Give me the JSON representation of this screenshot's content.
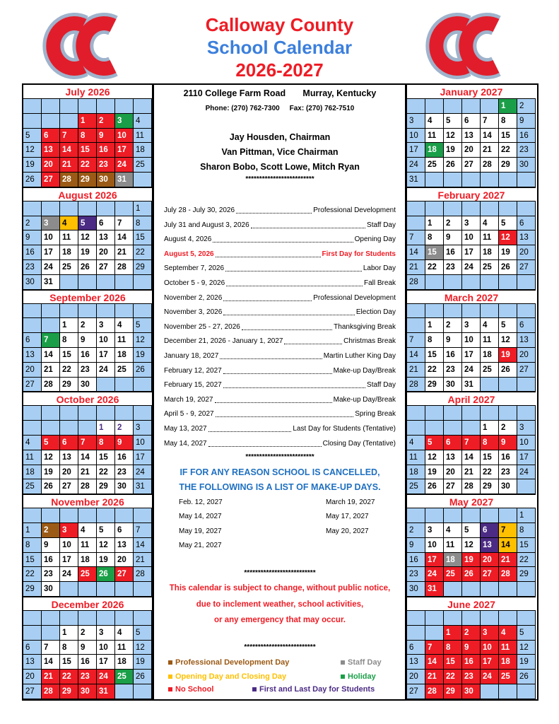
{
  "header": {
    "title_line1": "Calloway County",
    "title_line2": "School Calendar",
    "title_line3": "2026-2027"
  },
  "months_left": [
    {
      "name": "July 2026",
      "weeks": [
        [
          null,
          null,
          null,
          null,
          null,
          null,
          null
        ],
        [
          null,
          null,
          null,
          {
            "day": 1,
            "color": "#ee1c25"
          },
          {
            "day": 2,
            "color": "#ee1c25"
          },
          {
            "day": 3,
            "color": "#1a9f48"
          },
          4
        ],
        [
          5,
          {
            "day": 6,
            "color": "#ee1c25"
          },
          {
            "day": 7,
            "color": "#ee1c25"
          },
          {
            "day": 8,
            "color": "#ee1c25"
          },
          {
            "day": 9,
            "color": "#ee1c25"
          },
          {
            "day": 10,
            "color": "#ee1c25"
          },
          11
        ],
        [
          12,
          {
            "day": 13,
            "color": "#ee1c25"
          },
          {
            "day": 14,
            "color": "#ee1c25"
          },
          {
            "day": 15,
            "color": "#ee1c25"
          },
          {
            "day": 16,
            "color": "#ee1c25"
          },
          {
            "day": 17,
            "color": "#ee1c25"
          },
          18
        ],
        [
          19,
          {
            "day": 20,
            "color": "#ee1c25"
          },
          {
            "day": 21,
            "color": "#ee1c25"
          },
          {
            "day": 22,
            "color": "#ee1c25"
          },
          {
            "day": 23,
            "color": "#ee1c25"
          },
          {
            "day": 24,
            "color": "#ee1c25"
          },
          25
        ],
        [
          26,
          {
            "day": 27,
            "color": "#ee1c25"
          },
          {
            "day": 28,
            "color": "#9b5a15"
          },
          {
            "day": 29,
            "color": "#9b5a15"
          },
          {
            "day": 30,
            "color": "#9b5a15"
          },
          {
            "day": 31,
            "color": "#8c8c8c"
          },
          null
        ]
      ]
    },
    {
      "name": "August 2026",
      "weeks": [
        [
          null,
          null,
          null,
          null,
          null,
          null,
          1
        ],
        [
          2,
          {
            "day": 3,
            "color": "#8c8c8c"
          },
          {
            "day": 4,
            "color": "#ffc000"
          },
          {
            "day": 5,
            "color": "#4b2b83"
          },
          6,
          7,
          8
        ],
        [
          9,
          10,
          11,
          12,
          13,
          14,
          15
        ],
        [
          16,
          17,
          18,
          19,
          20,
          21,
          22
        ],
        [
          23,
          24,
          25,
          26,
          27,
          28,
          29
        ],
        [
          30,
          31,
          null,
          null,
          null,
          null,
          null
        ]
      ]
    },
    {
      "name": "September 2026",
      "weeks": [
        [
          null,
          null,
          null,
          null,
          null,
          null,
          null
        ],
        [
          null,
          null,
          1,
          2,
          3,
          4,
          5
        ],
        [
          6,
          {
            "day": 7,
            "color": "#1a9f48"
          },
          8,
          9,
          10,
          11,
          12
        ],
        [
          13,
          14,
          15,
          16,
          17,
          18,
          19
        ],
        [
          20,
          21,
          22,
          23,
          24,
          25,
          26
        ],
        [
          27,
          28,
          29,
          30,
          null,
          null,
          null
        ]
      ]
    },
    {
      "name": "October 2026",
      "weeks": [
        [
          null,
          null,
          null,
          null,
          null,
          null,
          null
        ],
        [
          null,
          null,
          null,
          null,
          {
            "day": 1,
            "text_color": "#4b2b83"
          },
          {
            "day": 2,
            "text_color": "#4b2b83"
          },
          3
        ],
        [
          4,
          {
            "day": 5,
            "color": "#ee1c25"
          },
          {
            "day": 6,
            "color": "#ee1c25"
          },
          {
            "day": 7,
            "color": "#ee1c25"
          },
          {
            "day": 8,
            "color": "#ee1c25"
          },
          {
            "day": 9,
            "color": "#ee1c25"
          },
          10
        ],
        [
          11,
          12,
          13,
          14,
          15,
          16,
          17
        ],
        [
          18,
          19,
          20,
          21,
          22,
          23,
          24
        ],
        [
          25,
          26,
          27,
          28,
          29,
          30,
          31
        ]
      ]
    },
    {
      "name": "November 2026",
      "weeks": [
        [
          null,
          null,
          null,
          null,
          null,
          null,
          null
        ],
        [
          1,
          {
            "day": 2,
            "color": "#9b5a15"
          },
          {
            "day": 3,
            "color": "#ee1c25"
          },
          4,
          5,
          6,
          7
        ],
        [
          8,
          9,
          10,
          11,
          12,
          13,
          14
        ],
        [
          15,
          16,
          17,
          18,
          19,
          20,
          21
        ],
        [
          22,
          23,
          24,
          {
            "day": 25,
            "color": "#ee1c25"
          },
          {
            "day": 26,
            "color": "#1a9f48"
          },
          {
            "day": 27,
            "color": "#ee1c25"
          },
          28
        ],
        [
          29,
          30,
          null,
          null,
          null,
          null,
          null
        ]
      ]
    },
    {
      "name": "December 2026",
      "weeks": [
        [
          null,
          null,
          null,
          null,
          null,
          null,
          null
        ],
        [
          null,
          null,
          1,
          2,
          3,
          4,
          5
        ],
        [
          6,
          7,
          8,
          9,
          10,
          11,
          12
        ],
        [
          13,
          14,
          15,
          16,
          17,
          18,
          19
        ],
        [
          20,
          {
            "day": 21,
            "color": "#ee1c25"
          },
          {
            "day": 22,
            "color": "#ee1c25"
          },
          {
            "day": 23,
            "color": "#ee1c25"
          },
          {
            "day": 24,
            "color": "#ee1c25"
          },
          {
            "day": 25,
            "color": "#1a9f48"
          },
          26
        ],
        [
          27,
          {
            "day": 28,
            "color": "#ee1c25"
          },
          {
            "day": 29,
            "color": "#ee1c25"
          },
          {
            "day": 30,
            "color": "#ee1c25"
          },
          {
            "day": 31,
            "color": "#ee1c25"
          },
          null,
          null
        ]
      ]
    }
  ],
  "months_right": [
    {
      "name": "January 2027",
      "weeks": [
        [
          null,
          null,
          null,
          null,
          null,
          {
            "day": 1,
            "color": "#1a9f48"
          },
          2
        ],
        [
          3,
          4,
          5,
          6,
          7,
          8,
          9
        ],
        [
          10,
          11,
          12,
          13,
          14,
          15,
          16
        ],
        [
          17,
          {
            "day": 18,
            "color": "#1a9f48"
          },
          19,
          20,
          21,
          22,
          23
        ],
        [
          24,
          25,
          26,
          27,
          28,
          29,
          30
        ],
        [
          31,
          null,
          null,
          null,
          null,
          null,
          null
        ]
      ]
    },
    {
      "name": "February 2027",
      "weeks": [
        [
          null,
          null,
          null,
          null,
          null,
          null,
          null
        ],
        [
          null,
          1,
          2,
          3,
          4,
          5,
          6
        ],
        [
          7,
          8,
          9,
          10,
          11,
          {
            "day": 12,
            "color": "#ee1c25"
          },
          13
        ],
        [
          14,
          {
            "day": 15,
            "color": "#8c8c8c"
          },
          16,
          17,
          18,
          19,
          20
        ],
        [
          21,
          22,
          23,
          24,
          25,
          26,
          27
        ],
        [
          28,
          null,
          null,
          null,
          null,
          null,
          null
        ]
      ]
    },
    {
      "name": "March 2027",
      "weeks": [
        [
          null,
          null,
          null,
          null,
          null,
          null,
          null
        ],
        [
          null,
          1,
          2,
          3,
          4,
          5,
          6
        ],
        [
          7,
          8,
          9,
          10,
          11,
          12,
          13
        ],
        [
          14,
          15,
          16,
          17,
          18,
          {
            "day": 19,
            "color": "#ee1c25"
          },
          20
        ],
        [
          21,
          22,
          23,
          24,
          25,
          26,
          27
        ],
        [
          28,
          29,
          30,
          31,
          null,
          null,
          null
        ]
      ]
    },
    {
      "name": "April 2027",
      "weeks": [
        [
          null,
          null,
          null,
          null,
          null,
          null,
          null
        ],
        [
          null,
          null,
          null,
          null,
          1,
          2,
          3
        ],
        [
          4,
          {
            "day": 5,
            "color": "#ee1c25"
          },
          {
            "day": 6,
            "color": "#ee1c25"
          },
          {
            "day": 7,
            "color": "#ee1c25"
          },
          {
            "day": 8,
            "color": "#ee1c25"
          },
          {
            "day": 9,
            "color": "#ee1c25"
          },
          10
        ],
        [
          11,
          12,
          13,
          14,
          15,
          16,
          17
        ],
        [
          18,
          19,
          20,
          21,
          22,
          23,
          24
        ],
        [
          25,
          26,
          27,
          28,
          29,
          30,
          null
        ]
      ]
    },
    {
      "name": "May 2027",
      "weeks": [
        [
          null,
          null,
          null,
          null,
          null,
          null,
          1
        ],
        [
          2,
          3,
          4,
          5,
          {
            "day": 6,
            "color": "#4b2b83"
          },
          {
            "day": 7,
            "color": "#ffc000"
          },
          8
        ],
        [
          9,
          10,
          11,
          12,
          {
            "day": 13,
            "color": "#4b2b83"
          },
          {
            "day": 14,
            "color": "#ffc000"
          },
          15
        ],
        [
          16,
          {
            "day": 17,
            "color": "#ee1c25"
          },
          {
            "day": 18,
            "color": "#8c8c8c"
          },
          {
            "day": 19,
            "color": "#ee1c25"
          },
          {
            "day": 20,
            "color": "#ee1c25"
          },
          {
            "day": 21,
            "color": "#ee1c25"
          },
          22
        ],
        [
          23,
          {
            "day": 24,
            "color": "#ee1c25"
          },
          {
            "day": 25,
            "color": "#ee1c25"
          },
          {
            "day": 26,
            "color": "#ee1c25"
          },
          {
            "day": 27,
            "color": "#ee1c25"
          },
          {
            "day": 28,
            "color": "#ee1c25"
          },
          29
        ],
        [
          30,
          {
            "day": 31,
            "color": "#ee1c25"
          },
          null,
          null,
          null,
          null,
          null
        ]
      ]
    },
    {
      "name": "June 2027",
      "weeks": [
        [
          null,
          null,
          null,
          null,
          null,
          null,
          null
        ],
        [
          null,
          null,
          {
            "day": 1,
            "color": "#ee1c25"
          },
          {
            "day": 2,
            "color": "#ee1c25"
          },
          {
            "day": 3,
            "color": "#ee1c25"
          },
          {
            "day": 4,
            "color": "#ee1c25"
          },
          5
        ],
        [
          6,
          {
            "day": 7,
            "color": "#ee1c25"
          },
          {
            "day": 8,
            "color": "#ee1c25"
          },
          {
            "day": 9,
            "color": "#ee1c25"
          },
          {
            "day": 10,
            "color": "#ee1c25"
          },
          {
            "day": 11,
            "color": "#ee1c25"
          },
          12
        ],
        [
          13,
          {
            "day": 14,
            "color": "#ee1c25"
          },
          {
            "day": 15,
            "color": "#ee1c25"
          },
          {
            "day": 16,
            "color": "#ee1c25"
          },
          {
            "day": 17,
            "color": "#ee1c25"
          },
          {
            "day": 18,
            "color": "#ee1c25"
          },
          19
        ],
        [
          20,
          {
            "day": 21,
            "color": "#ee1c25"
          },
          {
            "day": 22,
            "color": "#ee1c25"
          },
          {
            "day": 23,
            "color": "#ee1c25"
          },
          {
            "day": 24,
            "color": "#ee1c25"
          },
          {
            "day": 25,
            "color": "#ee1c25"
          },
          26
        ],
        [
          27,
          {
            "day": 28,
            "color": "#ee1c25"
          },
          {
            "day": 29,
            "color": "#ee1c25"
          },
          {
            "day": 30,
            "color": "#ee1c25"
          },
          null,
          null,
          null
        ]
      ]
    }
  ],
  "info": {
    "address": "2110 College Farm Road",
    "city": "Murray, Kentucky",
    "phone": "Phone: (270) 762-7300",
    "fax": "Fax: (270) 762-7510",
    "board": [
      "Jay Housden, Chairman",
      "Van Pittman, Vice Chairman",
      "Sharon Bobo, Scott Lowe, Mitch Ryan"
    ],
    "separator": "*************************"
  },
  "events": [
    {
      "date": "July 28 - July 30, 2026",
      "description": "Professional Development"
    },
    {
      "date": "July 31 and August 3, 2026",
      "description": "Staff Day"
    },
    {
      "date": "August 4, 2026",
      "description": "Opening Day"
    },
    {
      "date": "August 5, 2026",
      "description": "First Day for Students",
      "color": "#ee1c25"
    },
    {
      "date": "September 7, 2026",
      "description": "Labor Day"
    },
    {
      "date": "October 5 - 9, 2026",
      "description": "Fall Break"
    },
    {
      "date": "November 2, 2026",
      "description": "Professional Development"
    },
    {
      "date": "November 3, 2026",
      "description": "Election Day"
    },
    {
      "date": "November 25 - 27, 2026",
      "description": "Thanksgiving Break"
    },
    {
      "date": "December 21, 2026 - January 1, 2027",
      "description": "Christmas Break"
    },
    {
      "date": "January 18, 2027",
      "description": "Martin Luther King Day"
    },
    {
      "date": "February 12, 2027",
      "description": "Make-up Day/Break"
    },
    {
      "date": "February 15, 2027",
      "description": "Staff Day"
    },
    {
      "date": "March 19, 2027",
      "description": "Make-up Day/Break"
    },
    {
      "date": "April 5 - 9, 2027",
      "description": "Spring Break"
    },
    {
      "date": "May 13, 2027",
      "description": "Last Day for Students (Tentative)"
    },
    {
      "date": "May 14, 2027",
      "description": "Closing Day (Tentative)"
    }
  ],
  "makeup": {
    "separator": "*************************",
    "heading": [
      "IF FOR ANY REASON SCHOOL IS CANCELLED,",
      "THE FOLLOWING IS A LIST OF MAKE-UP DAYS."
    ],
    "days": [
      [
        "Feb. 12, 2027",
        "March 19, 2027"
      ],
      [
        "May 14, 2027",
        "May 17, 2027"
      ],
      [
        "May 19, 2027",
        "May 20, 2027"
      ],
      [
        "May 21, 2027"
      ]
    ]
  },
  "notice": {
    "separator": "**************************",
    "lines": [
      "This calendar is subject to change, without public notice,",
      "due to inclement weather, school activities,",
      "or any emergency that may occur."
    ]
  },
  "legend": {
    "separator": "**************************",
    "items": [
      {
        "label": "Professional Development Day",
        "color": "#9b5a15"
      },
      {
        "label": "Staff Day",
        "color": "#8c8c8c"
      },
      {
        "label": "Opening Day and Closing Day",
        "color": "#ffc000"
      },
      {
        "label": "Holiday",
        "color": "#1a9f48"
      },
      {
        "label": "No School",
        "color": "#ee1c25"
      },
      {
        "label": "First and Last Day for Students",
        "color": "#4b2b83"
      }
    ]
  }
}
